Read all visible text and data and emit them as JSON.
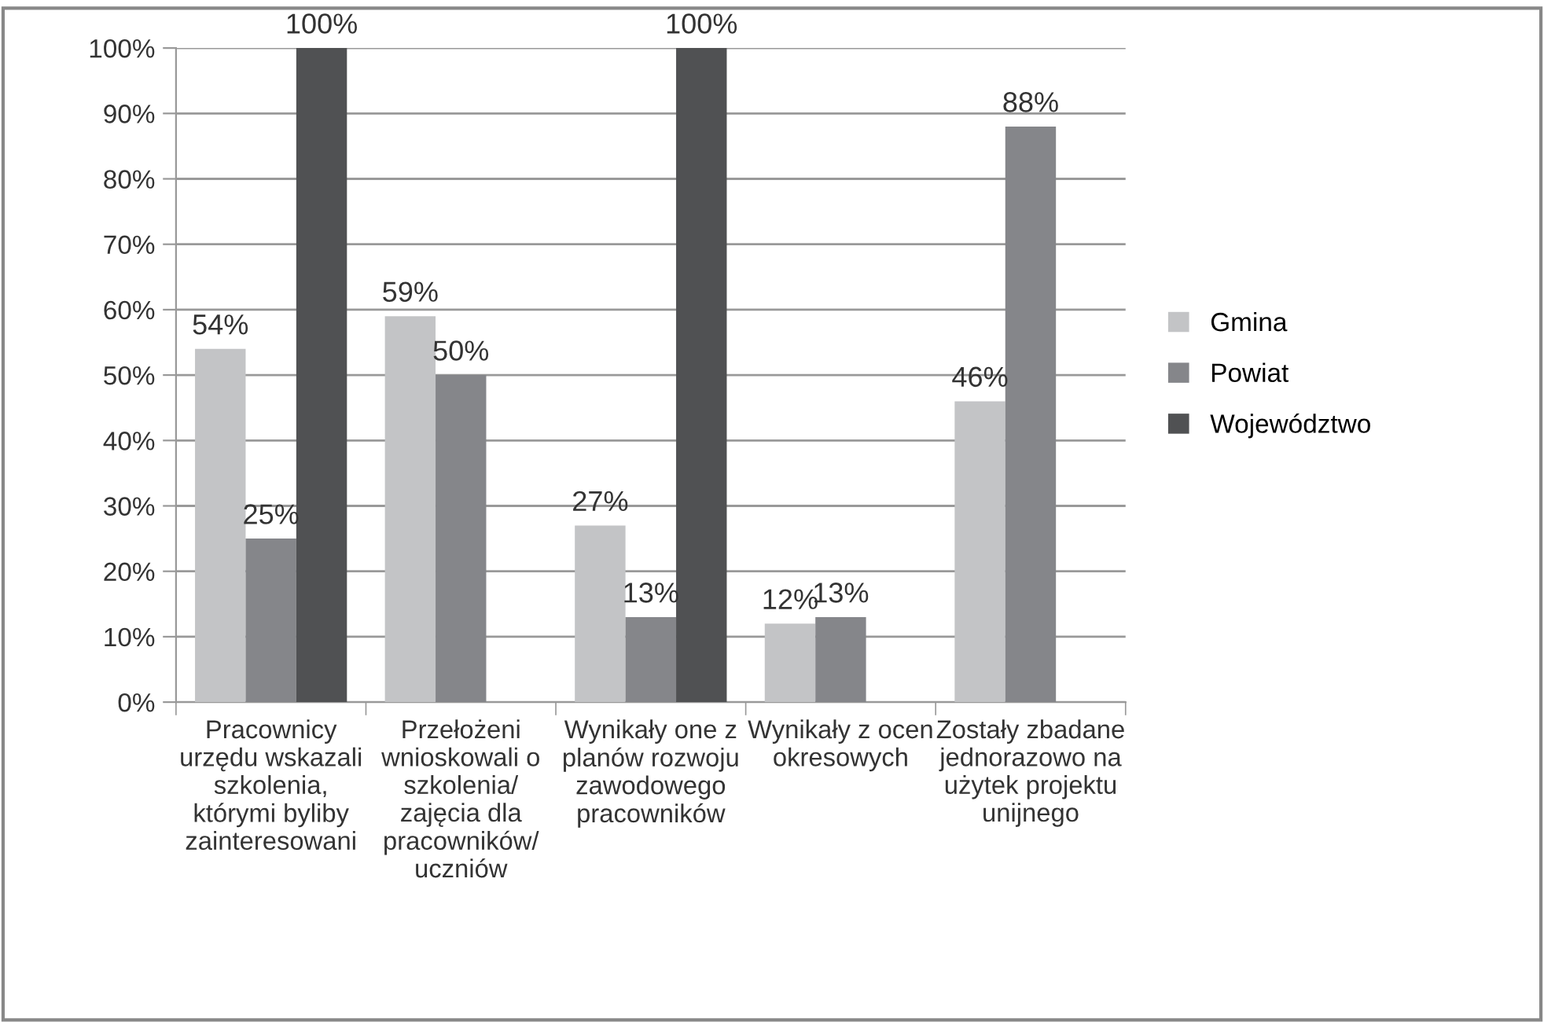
{
  "chart_data": {
    "type": "bar",
    "categories": [
      "Pracownicy\nurzędu wskazali\nszkolenia,\nktórymi byliby\nzainteresowani",
      "Przełożeni\nwnioskowali o\nszkolenia/\nzajęcia dla\npracowników/\nuczniów",
      "Wynikały one z\nplanów rozwoju\nzawodowego\npracowników",
      "Wynikały z ocen\nokresowych",
      "Zostały zbadane\njednorazowo na\nużytek projektu\nunijnego"
    ],
    "series": [
      {
        "name": "Gmina",
        "color": "#c3c4c6",
        "values": [
          54,
          59,
          27,
          12,
          46
        ],
        "value_labels": [
          "54%",
          "59%",
          "27%",
          "12%",
          "46%"
        ]
      },
      {
        "name": "Powiat",
        "color": "#85868a",
        "values": [
          25,
          50,
          13,
          13,
          88
        ],
        "value_labels": [
          "25%",
          "50%",
          "13%",
          "13%",
          "88%"
        ]
      },
      {
        "name": "Województwo",
        "color": "#505153",
        "values": [
          100,
          null,
          100,
          null,
          null
        ],
        "value_labels": [
          "100%",
          null,
          "100%",
          null,
          null
        ]
      }
    ],
    "ylim": [
      0,
      100
    ],
    "yticks": [
      {
        "value": 0,
        "label": "0%"
      },
      {
        "value": 10,
        "label": "10%"
      },
      {
        "value": 20,
        "label": "20%"
      },
      {
        "value": 30,
        "label": "30%"
      },
      {
        "value": 40,
        "label": "40%"
      },
      {
        "value": 50,
        "label": "50%"
      },
      {
        "value": 60,
        "label": "60%"
      },
      {
        "value": 70,
        "label": "70%"
      },
      {
        "value": 80,
        "label": "80%"
      },
      {
        "value": 90,
        "label": "90%"
      },
      {
        "value": 100,
        "label": "100%"
      }
    ],
    "grid": "y",
    "legend": "right"
  }
}
